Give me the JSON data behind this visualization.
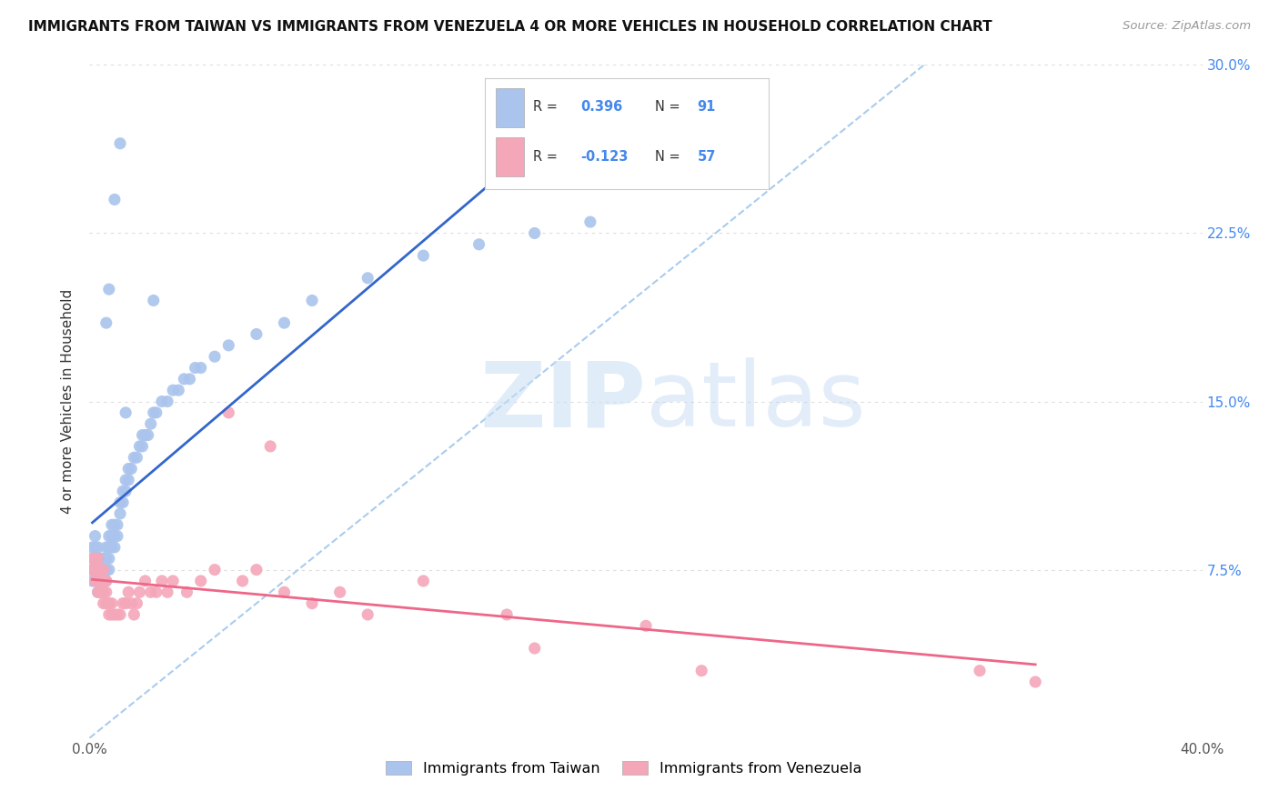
{
  "title": "IMMIGRANTS FROM TAIWAN VS IMMIGRANTS FROM VENEZUELA 4 OR MORE VEHICLES IN HOUSEHOLD CORRELATION CHART",
  "source": "Source: ZipAtlas.com",
  "ylabel": "4 or more Vehicles in Household",
  "xlim": [
    0.0,
    0.4
  ],
  "ylim": [
    0.0,
    0.3
  ],
  "taiwan_R": 0.396,
  "taiwan_N": 91,
  "venezuela_R": -0.123,
  "venezuela_N": 57,
  "taiwan_color": "#aac4ed",
  "venezuela_color": "#f4a7b9",
  "taiwan_line_color": "#3366cc",
  "venezuela_line_color": "#ee6688",
  "diagonal_color": "#aaccee",
  "background_color": "#ffffff",
  "grid_color": "#dddddd",
  "right_tick_color": "#4488ee",
  "watermark_zip": "ZIP",
  "watermark_atlas": "atlas",
  "taiwan_x": [
    0.001,
    0.001,
    0.001,
    0.001,
    0.002,
    0.002,
    0.002,
    0.002,
    0.002,
    0.002,
    0.002,
    0.003,
    0.003,
    0.003,
    0.003,
    0.003,
    0.003,
    0.003,
    0.003,
    0.004,
    0.004,
    0.004,
    0.004,
    0.004,
    0.004,
    0.005,
    0.005,
    0.005,
    0.005,
    0.005,
    0.005,
    0.006,
    0.006,
    0.006,
    0.006,
    0.006,
    0.007,
    0.007,
    0.007,
    0.007,
    0.008,
    0.008,
    0.008,
    0.009,
    0.009,
    0.009,
    0.01,
    0.01,
    0.011,
    0.011,
    0.012,
    0.012,
    0.013,
    0.013,
    0.014,
    0.014,
    0.015,
    0.016,
    0.017,
    0.018,
    0.019,
    0.02,
    0.021,
    0.022,
    0.023,
    0.024,
    0.026,
    0.028,
    0.03,
    0.032,
    0.034,
    0.036,
    0.038,
    0.04,
    0.045,
    0.05,
    0.06,
    0.07,
    0.08,
    0.1,
    0.12,
    0.14,
    0.16,
    0.18,
    0.023,
    0.011,
    0.006,
    0.019,
    0.009,
    0.013,
    0.007
  ],
  "taiwan_y": [
    0.075,
    0.08,
    0.085,
    0.07,
    0.075,
    0.08,
    0.085,
    0.09,
    0.07,
    0.075,
    0.08,
    0.07,
    0.075,
    0.08,
    0.085,
    0.065,
    0.07,
    0.075,
    0.08,
    0.07,
    0.075,
    0.08,
    0.065,
    0.075,
    0.08,
    0.07,
    0.075,
    0.08,
    0.065,
    0.07,
    0.075,
    0.075,
    0.08,
    0.085,
    0.07,
    0.075,
    0.075,
    0.08,
    0.085,
    0.09,
    0.085,
    0.09,
    0.095,
    0.085,
    0.09,
    0.095,
    0.09,
    0.095,
    0.1,
    0.105,
    0.105,
    0.11,
    0.11,
    0.115,
    0.115,
    0.12,
    0.12,
    0.125,
    0.125,
    0.13,
    0.13,
    0.135,
    0.135,
    0.14,
    0.145,
    0.145,
    0.15,
    0.15,
    0.155,
    0.155,
    0.16,
    0.16,
    0.165,
    0.165,
    0.17,
    0.175,
    0.18,
    0.185,
    0.195,
    0.205,
    0.215,
    0.22,
    0.225,
    0.23,
    0.195,
    0.265,
    0.185,
    0.135,
    0.24,
    0.145,
    0.2
  ],
  "venezuela_x": [
    0.001,
    0.001,
    0.002,
    0.002,
    0.002,
    0.003,
    0.003,
    0.003,
    0.003,
    0.004,
    0.004,
    0.004,
    0.005,
    0.005,
    0.005,
    0.005,
    0.006,
    0.006,
    0.006,
    0.007,
    0.007,
    0.008,
    0.008,
    0.009,
    0.01,
    0.011,
    0.012,
    0.013,
    0.014,
    0.015,
    0.016,
    0.017,
    0.018,
    0.02,
    0.022,
    0.024,
    0.026,
    0.028,
    0.03,
    0.035,
    0.04,
    0.045,
    0.05,
    0.055,
    0.06,
    0.065,
    0.07,
    0.08,
    0.09,
    0.1,
    0.12,
    0.15,
    0.16,
    0.2,
    0.22,
    0.32,
    0.34
  ],
  "venezuela_y": [
    0.075,
    0.08,
    0.07,
    0.075,
    0.08,
    0.065,
    0.07,
    0.075,
    0.08,
    0.065,
    0.07,
    0.075,
    0.06,
    0.065,
    0.07,
    0.075,
    0.06,
    0.065,
    0.07,
    0.055,
    0.06,
    0.055,
    0.06,
    0.055,
    0.055,
    0.055,
    0.06,
    0.06,
    0.065,
    0.06,
    0.055,
    0.06,
    0.065,
    0.07,
    0.065,
    0.065,
    0.07,
    0.065,
    0.07,
    0.065,
    0.07,
    0.075,
    0.145,
    0.07,
    0.075,
    0.13,
    0.065,
    0.06,
    0.065,
    0.055,
    0.07,
    0.055,
    0.04,
    0.05,
    0.03,
    0.03,
    0.025
  ]
}
